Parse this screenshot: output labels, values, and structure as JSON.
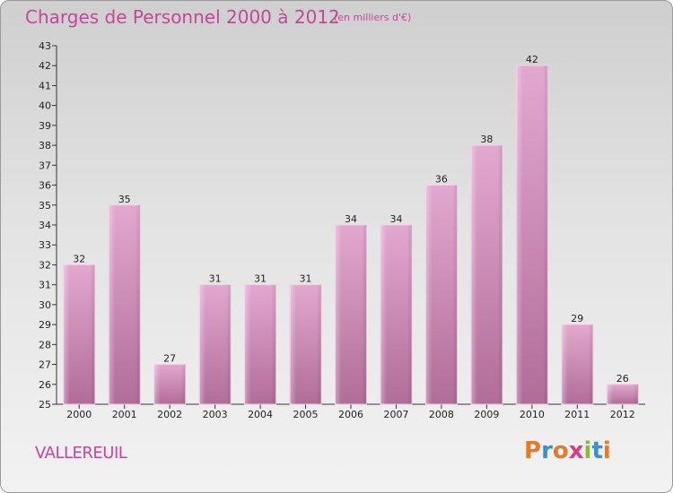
{
  "chart_data": {
    "type": "bar",
    "title": "Charges de Personnel 2000 à 2012",
    "subtitle": "(en milliers d'€)",
    "categories": [
      "2000",
      "2001",
      "2002",
      "2003",
      "2004",
      "2005",
      "2006",
      "2007",
      "2008",
      "2009",
      "2010",
      "2011",
      "2012"
    ],
    "values": [
      32,
      35,
      27,
      31,
      31,
      31,
      34,
      34,
      36,
      38,
      42,
      29,
      26
    ],
    "xlabel": "",
    "ylabel": "",
    "ylim": [
      25,
      43
    ],
    "yticks": [
      25,
      26,
      27,
      28,
      29,
      30,
      31,
      32,
      33,
      34,
      35,
      36,
      37,
      38,
      39,
      40,
      41,
      42,
      43
    ],
    "bar_color": "#dc9cc6",
    "grid": false
  },
  "footer": {
    "commune": "VALLEREUIL",
    "logo_letters": [
      "P",
      "r",
      "o",
      "x",
      "i",
      "t",
      "i"
    ],
    "logo_colors": [
      "#e37b2b",
      "#3b8ed8",
      "#e37b2b",
      "#d93a8a",
      "#8bbd2f",
      "#3b8ed8",
      "#e37b2b"
    ]
  },
  "colors": {
    "accent": "#c2489a"
  }
}
